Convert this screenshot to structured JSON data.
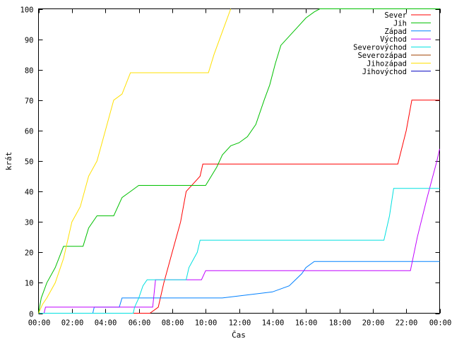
{
  "chart_data": {
    "type": "line",
    "xlabel": "Čas",
    "ylabel": "krát",
    "xlim": [
      "00:00",
      "24:00"
    ],
    "ylim": [
      0,
      100
    ],
    "x_tick_labels": [
      "00:00",
      "02:00",
      "04:00",
      "06:00",
      "08:00",
      "10:00",
      "12:00",
      "14:00",
      "16:00",
      "18:00",
      "20:00",
      "22:00",
      "00:00"
    ],
    "y_tick_labels": [
      "0",
      "10",
      "20",
      "30",
      "40",
      "50",
      "60",
      "70",
      "80",
      "90",
      "100"
    ],
    "y_tick_values": [
      0,
      10,
      20,
      30,
      40,
      50,
      60,
      70,
      80,
      90,
      100
    ],
    "grid": false,
    "legend_position": "top-right",
    "series": [
      {
        "name": "Sever",
        "color": "#ff0000",
        "x": [
          "00:00",
          "06:40",
          "07:10",
          "07:30",
          "08:00",
          "08:30",
          "08:50",
          "09:20",
          "09:40",
          "09:50",
          "21:30",
          "22:00",
          "22:20",
          "24:00"
        ],
        "y": [
          0,
          0,
          2,
          10,
          20,
          30,
          40,
          43,
          45,
          49,
          49,
          60,
          70,
          70
        ]
      },
      {
        "name": "Jih",
        "color": "#00c000",
        "x": [
          "00:00",
          "00:10",
          "00:30",
          "01:00",
          "01:30",
          "02:40",
          "03:00",
          "03:30",
          "04:30",
          "05:00",
          "05:30",
          "06:00",
          "10:00",
          "10:20",
          "10:40",
          "11:00",
          "11:30",
          "12:00",
          "12:30",
          "13:00",
          "13:30",
          "13:50",
          "14:10",
          "14:30",
          "15:00",
          "15:30",
          "16:00",
          "16:30",
          "16:50",
          "24:00"
        ],
        "y": [
          0,
          5,
          10,
          15,
          22,
          22,
          28,
          32,
          32,
          38,
          40,
          42,
          42,
          45,
          48,
          52,
          55,
          56,
          58,
          62,
          70,
          75,
          82,
          88,
          91,
          94,
          97,
          99,
          100,
          100
        ]
      },
      {
        "name": "Západ",
        "color": "#0080ff",
        "x": [
          "00:00",
          "03:15",
          "03:20",
          "04:50",
          "05:00",
          "11:00",
          "14:00",
          "15:00",
          "15:45",
          "16:00",
          "16:30",
          "24:00"
        ],
        "y": [
          0,
          0,
          2,
          2,
          5,
          5,
          7,
          9,
          13,
          15,
          17,
          17
        ]
      },
      {
        "name": "Východ",
        "color": "#c000ff",
        "x": [
          "00:00",
          "00:20",
          "00:25",
          "06:50",
          "07:00",
          "09:45",
          "10:00",
          "22:15",
          "22:40",
          "23:15",
          "23:50",
          "24:00"
        ],
        "y": [
          0,
          0,
          2,
          2,
          11,
          11,
          14,
          14,
          25,
          38,
          50,
          54
        ]
      },
      {
        "name": "Severovýchod",
        "color": "#00e0e0",
        "x": [
          "00:00",
          "05:40",
          "05:45",
          "06:00",
          "06:15",
          "06:30",
          "08:50",
          "09:00",
          "09:30",
          "09:40",
          "20:40",
          "21:00",
          "21:15",
          "24:00"
        ],
        "y": [
          0,
          0,
          2,
          5,
          9,
          11,
          11,
          15,
          20,
          24,
          24,
          32,
          41,
          41
        ]
      },
      {
        "name": "Severozápad",
        "color": "#a04000",
        "x": [],
        "y": []
      },
      {
        "name": "Jihozápad",
        "color": "#ffe000",
        "x": [
          "00:00",
          "00:15",
          "00:30",
          "01:00",
          "01:30",
          "02:00",
          "02:30",
          "03:00",
          "03:30",
          "04:00",
          "04:30",
          "05:00",
          "05:30",
          "10:10",
          "10:30",
          "10:50",
          "11:10",
          "11:30"
        ],
        "y": [
          0,
          3,
          5,
          10,
          18,
          30,
          35,
          45,
          50,
          60,
          70,
          72,
          79,
          79,
          85,
          90,
          95,
          100
        ]
      },
      {
        "name": "Jihovýchod",
        "color": "#0000c0",
        "x": [],
        "y": []
      }
    ]
  }
}
